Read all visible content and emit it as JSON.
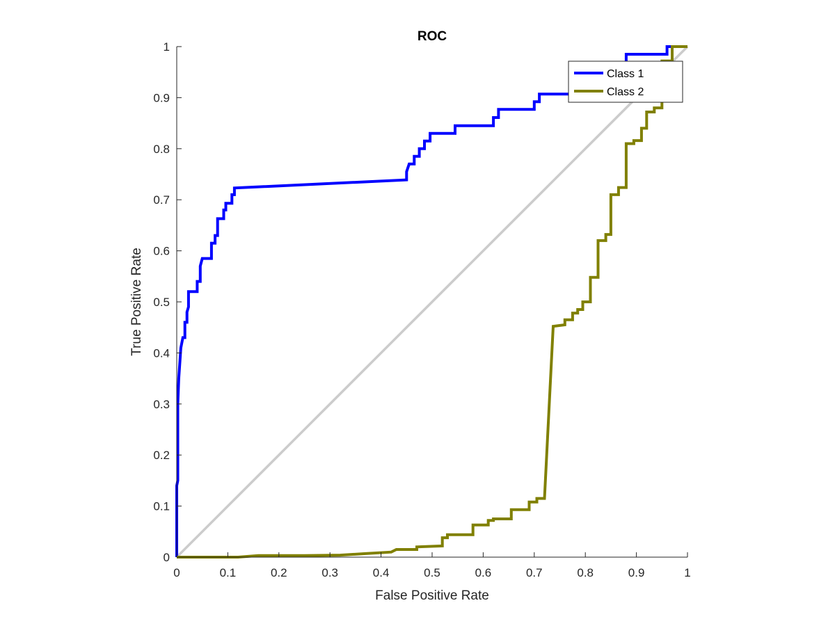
{
  "chart_data": {
    "type": "line",
    "title": "ROC",
    "xlabel": "False Positive Rate",
    "ylabel": "True Positive Rate",
    "xlim": [
      0,
      1
    ],
    "ylim": [
      0,
      1
    ],
    "x_ticks": [
      0,
      0.1,
      0.2,
      0.3,
      0.4,
      0.5,
      0.6,
      0.7,
      0.8,
      0.9,
      1
    ],
    "x_tick_labels": [
      "0",
      "0.1",
      "0.2",
      "0.3",
      "0.4",
      "0.5",
      "0.6",
      "0.7",
      "0.8",
      "0.9",
      "1"
    ],
    "y_ticks": [
      0,
      0.1,
      0.2,
      0.3,
      0.4,
      0.5,
      0.6,
      0.7,
      0.8,
      0.9,
      1
    ],
    "y_tick_labels": [
      "0",
      "0.1",
      "0.2",
      "0.3",
      "0.4",
      "0.5",
      "0.6",
      "0.7",
      "0.8",
      "0.9",
      "1"
    ],
    "grid": false,
    "legend_position": "top-right",
    "reference_line": {
      "x": [
        0,
        1
      ],
      "y": [
        0,
        1
      ],
      "color": "#cccccc"
    },
    "series": [
      {
        "name": "Class 1",
        "color": "#0000ff",
        "points": [
          [
            0,
            0
          ],
          [
            0,
            0.14
          ],
          [
            0.002,
            0.15
          ],
          [
            0.002,
            0.3
          ],
          [
            0.004,
            0.35
          ],
          [
            0.006,
            0.38
          ],
          [
            0.008,
            0.41
          ],
          [
            0.012,
            0.43
          ],
          [
            0.016,
            0.43
          ],
          [
            0.016,
            0.46
          ],
          [
            0.02,
            0.46
          ],
          [
            0.02,
            0.48
          ],
          [
            0.023,
            0.49
          ],
          [
            0.023,
            0.52
          ],
          [
            0.04,
            0.52
          ],
          [
            0.04,
            0.54
          ],
          [
            0.046,
            0.54
          ],
          [
            0.046,
            0.57
          ],
          [
            0.05,
            0.585
          ],
          [
            0.068,
            0.585
          ],
          [
            0.068,
            0.615
          ],
          [
            0.075,
            0.615
          ],
          [
            0.075,
            0.63
          ],
          [
            0.08,
            0.63
          ],
          [
            0.08,
            0.663
          ],
          [
            0.092,
            0.663
          ],
          [
            0.092,
            0.68
          ],
          [
            0.096,
            0.68
          ],
          [
            0.096,
            0.693
          ],
          [
            0.108,
            0.693
          ],
          [
            0.108,
            0.71
          ],
          [
            0.113,
            0.71
          ],
          [
            0.113,
            0.723
          ],
          [
            0.45,
            0.739
          ],
          [
            0.45,
            0.755
          ],
          [
            0.455,
            0.77
          ],
          [
            0.465,
            0.77
          ],
          [
            0.465,
            0.785
          ],
          [
            0.475,
            0.785
          ],
          [
            0.475,
            0.8
          ],
          [
            0.485,
            0.8
          ],
          [
            0.485,
            0.815
          ],
          [
            0.496,
            0.815
          ],
          [
            0.496,
            0.83
          ],
          [
            0.545,
            0.83
          ],
          [
            0.545,
            0.845
          ],
          [
            0.62,
            0.845
          ],
          [
            0.62,
            0.861
          ],
          [
            0.63,
            0.861
          ],
          [
            0.63,
            0.877
          ],
          [
            0.7,
            0.877
          ],
          [
            0.7,
            0.892
          ],
          [
            0.71,
            0.892
          ],
          [
            0.71,
            0.907
          ],
          [
            0.82,
            0.907
          ],
          [
            0.82,
            0.923
          ],
          [
            0.845,
            0.923
          ],
          [
            0.845,
            0.953
          ],
          [
            0.88,
            0.953
          ],
          [
            0.88,
            0.985
          ],
          [
            0.96,
            0.985
          ],
          [
            0.96,
            1.0
          ],
          [
            1.0,
            1.0
          ]
        ]
      },
      {
        "name": "Class 2",
        "color": "#808000",
        "points": [
          [
            0,
            0
          ],
          [
            0.12,
            0.0
          ],
          [
            0.16,
            0.003
          ],
          [
            0.25,
            0.003
          ],
          [
            0.32,
            0.004
          ],
          [
            0.37,
            0.007
          ],
          [
            0.42,
            0.01
          ],
          [
            0.43,
            0.015
          ],
          [
            0.47,
            0.015
          ],
          [
            0.47,
            0.02
          ],
          [
            0.52,
            0.022
          ],
          [
            0.52,
            0.038
          ],
          [
            0.53,
            0.038
          ],
          [
            0.53,
            0.044
          ],
          [
            0.58,
            0.044
          ],
          [
            0.58,
            0.063
          ],
          [
            0.61,
            0.063
          ],
          [
            0.61,
            0.072
          ],
          [
            0.62,
            0.072
          ],
          [
            0.62,
            0.075
          ],
          [
            0.655,
            0.075
          ],
          [
            0.655,
            0.093
          ],
          [
            0.69,
            0.093
          ],
          [
            0.69,
            0.108
          ],
          [
            0.705,
            0.108
          ],
          [
            0.705,
            0.115
          ],
          [
            0.72,
            0.115
          ],
          [
            0.737,
            0.452
          ],
          [
            0.76,
            0.455
          ],
          [
            0.76,
            0.465
          ],
          [
            0.775,
            0.465
          ],
          [
            0.775,
            0.478
          ],
          [
            0.785,
            0.478
          ],
          [
            0.785,
            0.485
          ],
          [
            0.795,
            0.485
          ],
          [
            0.795,
            0.5
          ],
          [
            0.81,
            0.5
          ],
          [
            0.81,
            0.548
          ],
          [
            0.825,
            0.548
          ],
          [
            0.825,
            0.62
          ],
          [
            0.84,
            0.62
          ],
          [
            0.84,
            0.632
          ],
          [
            0.85,
            0.632
          ],
          [
            0.85,
            0.71
          ],
          [
            0.865,
            0.71
          ],
          [
            0.865,
            0.724
          ],
          [
            0.88,
            0.724
          ],
          [
            0.88,
            0.81
          ],
          [
            0.895,
            0.81
          ],
          [
            0.895,
            0.816
          ],
          [
            0.91,
            0.816
          ],
          [
            0.91,
            0.84
          ],
          [
            0.92,
            0.84
          ],
          [
            0.92,
            0.872
          ],
          [
            0.935,
            0.872
          ],
          [
            0.935,
            0.88
          ],
          [
            0.95,
            0.88
          ],
          [
            0.95,
            0.972
          ],
          [
            0.97,
            0.972
          ],
          [
            0.97,
            1.0
          ],
          [
            1.0,
            1.0
          ]
        ]
      }
    ]
  }
}
